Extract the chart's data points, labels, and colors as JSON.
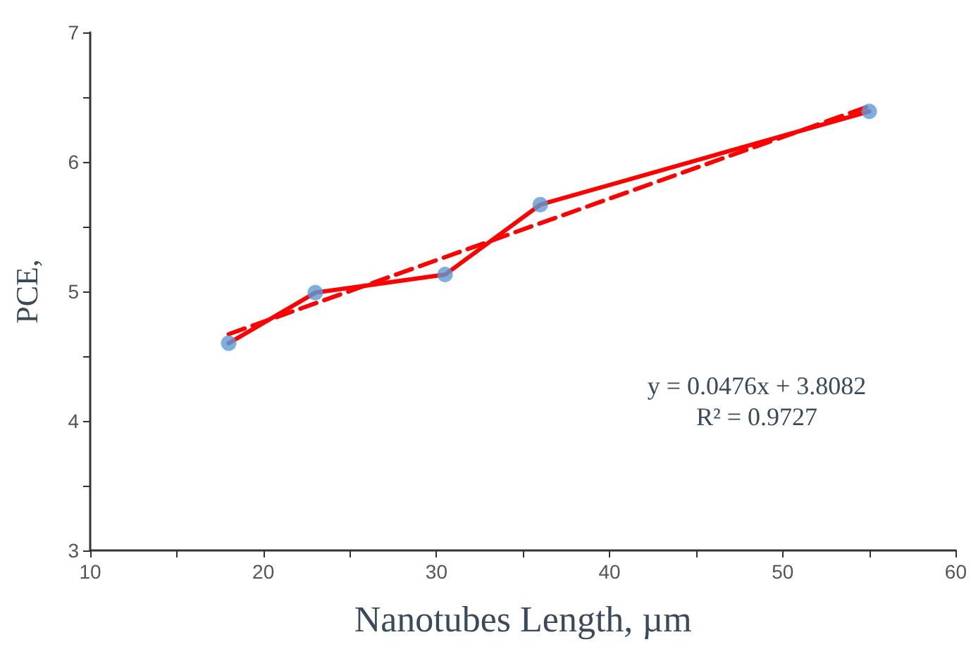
{
  "chart_data": {
    "type": "line",
    "xlabel": "Nanotubes Length, µm",
    "ylabel": "PCE,",
    "xlim": [
      10,
      60
    ],
    "xticks": [
      10,
      20,
      30,
      40,
      50,
      60
    ],
    "ylim": [
      3,
      7
    ],
    "yticks": [
      3,
      4,
      5,
      6,
      7
    ],
    "grid": false,
    "series": [
      {
        "color": "#ff0000",
        "marker": "none",
        "line_style": "solid",
        "x": [
          18,
          23,
          30.5,
          36,
          55
        ],
        "values": [
          4.6,
          4.99,
          5.13,
          5.67,
          6.39
        ]
      },
      {
        "type": "scatter",
        "color": "#5b9bd5",
        "marker": "circle",
        "x": [
          18,
          23,
          30.5,
          36,
          55
        ],
        "values": [
          4.6,
          4.99,
          5.13,
          5.67,
          6.39
        ]
      },
      {
        "color": "#ff0000",
        "marker": "none",
        "line_style": "dashed",
        "x": [
          18,
          55
        ],
        "values": [
          4.67,
          6.43
        ]
      }
    ],
    "annotations": [
      "y = 0.0476x + 3.8082",
      "R² = 0.9727"
    ]
  }
}
